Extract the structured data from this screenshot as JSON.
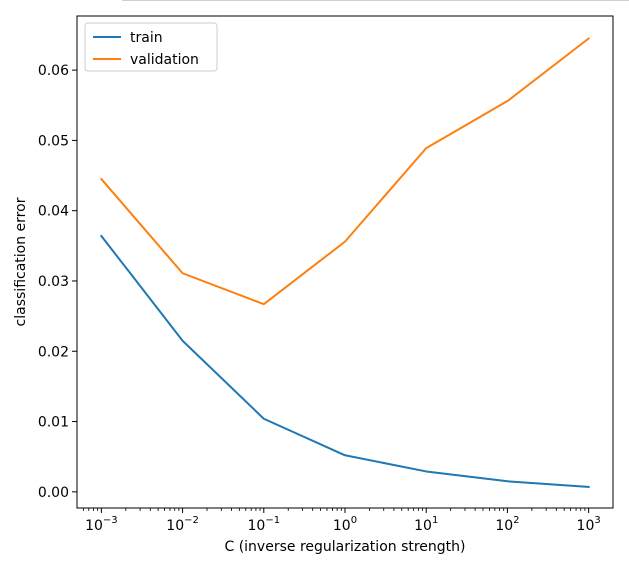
{
  "chart_data": {
    "type": "line",
    "xscale": "log",
    "x": [
      0.001,
      0.01,
      0.1,
      1,
      10,
      100,
      1000
    ],
    "x_tick_labels": [
      {
        "base": "10",
        "exp": "−3"
      },
      {
        "base": "10",
        "exp": "−2"
      },
      {
        "base": "10",
        "exp": "−1"
      },
      {
        "base": "10",
        "exp": "0"
      },
      {
        "base": "10",
        "exp": "1"
      },
      {
        "base": "10",
        "exp": "2"
      },
      {
        "base": "10",
        "exp": "3"
      }
    ],
    "y_ticks": [
      0.0,
      0.01,
      0.02,
      0.03,
      0.04,
      0.05,
      0.06
    ],
    "y_tick_labels": [
      "0.00",
      "0.01",
      "0.02",
      "0.03",
      "0.04",
      "0.05",
      "0.06"
    ],
    "ylim": [
      -0.0023,
      0.0677
    ],
    "xlabel": "C (inverse regularization strength)",
    "ylabel": "classification error",
    "legend_position": "top-left",
    "grid": false,
    "series": [
      {
        "name": "train",
        "color": "#1f77b4",
        "values": [
          0.0364,
          0.0215,
          0.0104,
          0.0052,
          0.0029,
          0.0015,
          0.0007
        ]
      },
      {
        "name": "validation",
        "color": "#ff7f0e",
        "values": [
          0.0445,
          0.0311,
          0.0267,
          0.0356,
          0.0489,
          0.0556,
          0.0645
        ]
      }
    ]
  }
}
